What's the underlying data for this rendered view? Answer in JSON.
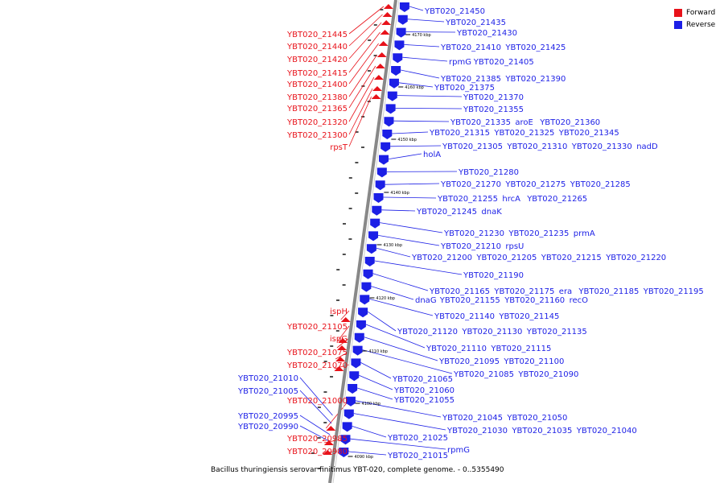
{
  "colors": {
    "forward": "#e8121a",
    "reverse": "#1c1fe6",
    "backbone": "#888888"
  },
  "legend": {
    "forward_label": "Forward",
    "reverse_label": "Reverse"
  },
  "caption": "Bacillus thuringiensis serovar finitimus YBT-020, complete genome. - 0..5355490",
  "scale_marks": [
    "4170 kbp",
    "4160 kbp",
    "4150 kbp",
    "4140 kbp",
    "4130 kbp",
    "4120 kbp",
    "4110 kbp",
    "4100 kbp",
    "4090 kbp"
  ],
  "forward_labels": [
    "YBT020_21445",
    "YBT020_21440",
    "YBT020_21420",
    "YBT020_21415",
    "YBT020_21400",
    "YBT020_21380",
    "YBT020_21365",
    "YBT020_21320",
    "YBT020_21300",
    "rpsT",
    "ispH",
    "YBT020_21105",
    "ispG",
    "YBT020_21075",
    "YBT020_21070",
    "YBT020_21000",
    "YBT020_20985",
    "YBT020_20980"
  ],
  "reverse_left_labels": [
    "YBT020_21010",
    "YBT020_21005",
    "YBT020_20995",
    "YBT020_20990"
  ],
  "reverse_labels": [
    [
      "YBT020_21450"
    ],
    [
      "YBT020_21435"
    ],
    [
      "YBT020_21430"
    ],
    [
      "YBT020_21410",
      "YBT020_21425"
    ],
    [
      "rpmG",
      "YBT020_21405"
    ],
    [
      "YBT020_21385",
      "YBT020_21390"
    ],
    [
      "YBT020_21375"
    ],
    [
      "YBT020_21370"
    ],
    [
      "YBT020_21355"
    ],
    [
      "YBT020_21335",
      "aroE",
      "YBT020_21360"
    ],
    [
      "YBT020_21315",
      "YBT020_21325",
      "YBT020_21345"
    ],
    [
      "YBT020_21305",
      "YBT020_21310",
      "YBT020_21330",
      "nadD"
    ],
    [
      "holA"
    ],
    [
      "YBT020_21280"
    ],
    [
      "YBT020_21270",
      "YBT020_21275",
      "YBT020_21285"
    ],
    [
      "YBT020_21255",
      "hrcA",
      "YBT020_21265"
    ],
    [
      "YBT020_21245",
      "dnaK"
    ],
    [
      "YBT020_21230",
      "YBT020_21235",
      "prmA"
    ],
    [
      "YBT020_21210",
      "rpsU"
    ],
    [
      "YBT020_21200",
      "YBT020_21205",
      "YBT020_21215",
      "YBT020_21220"
    ],
    [
      "YBT020_21190"
    ],
    [
      "YBT020_21165",
      "YBT020_21175",
      "era",
      "YBT020_21185",
      "YBT020_21195"
    ],
    [
      "dnaG",
      "YBT020_21155",
      "YBT020_21160",
      "recO"
    ],
    [
      "YBT020_21140",
      "YBT020_21145"
    ],
    [
      "YBT020_21120",
      "YBT020_21130",
      "YBT020_21135"
    ],
    [
      "YBT020_21110",
      "YBT020_21115"
    ],
    [
      "YBT020_21095",
      "YBT020_21100"
    ],
    [
      "YBT020_21085",
      "YBT020_21090"
    ],
    [
      "YBT020_21065"
    ],
    [
      "YBT020_21060"
    ],
    [
      "YBT020_21055"
    ],
    [
      "YBT020_21045",
      "YBT020_21050"
    ],
    [
      "YBT020_21030",
      "YBT020_21035",
      "YBT020_21040"
    ],
    [
      "YBT020_21025"
    ],
    [
      "rpmG"
    ],
    [
      "YBT020_21015"
    ]
  ]
}
